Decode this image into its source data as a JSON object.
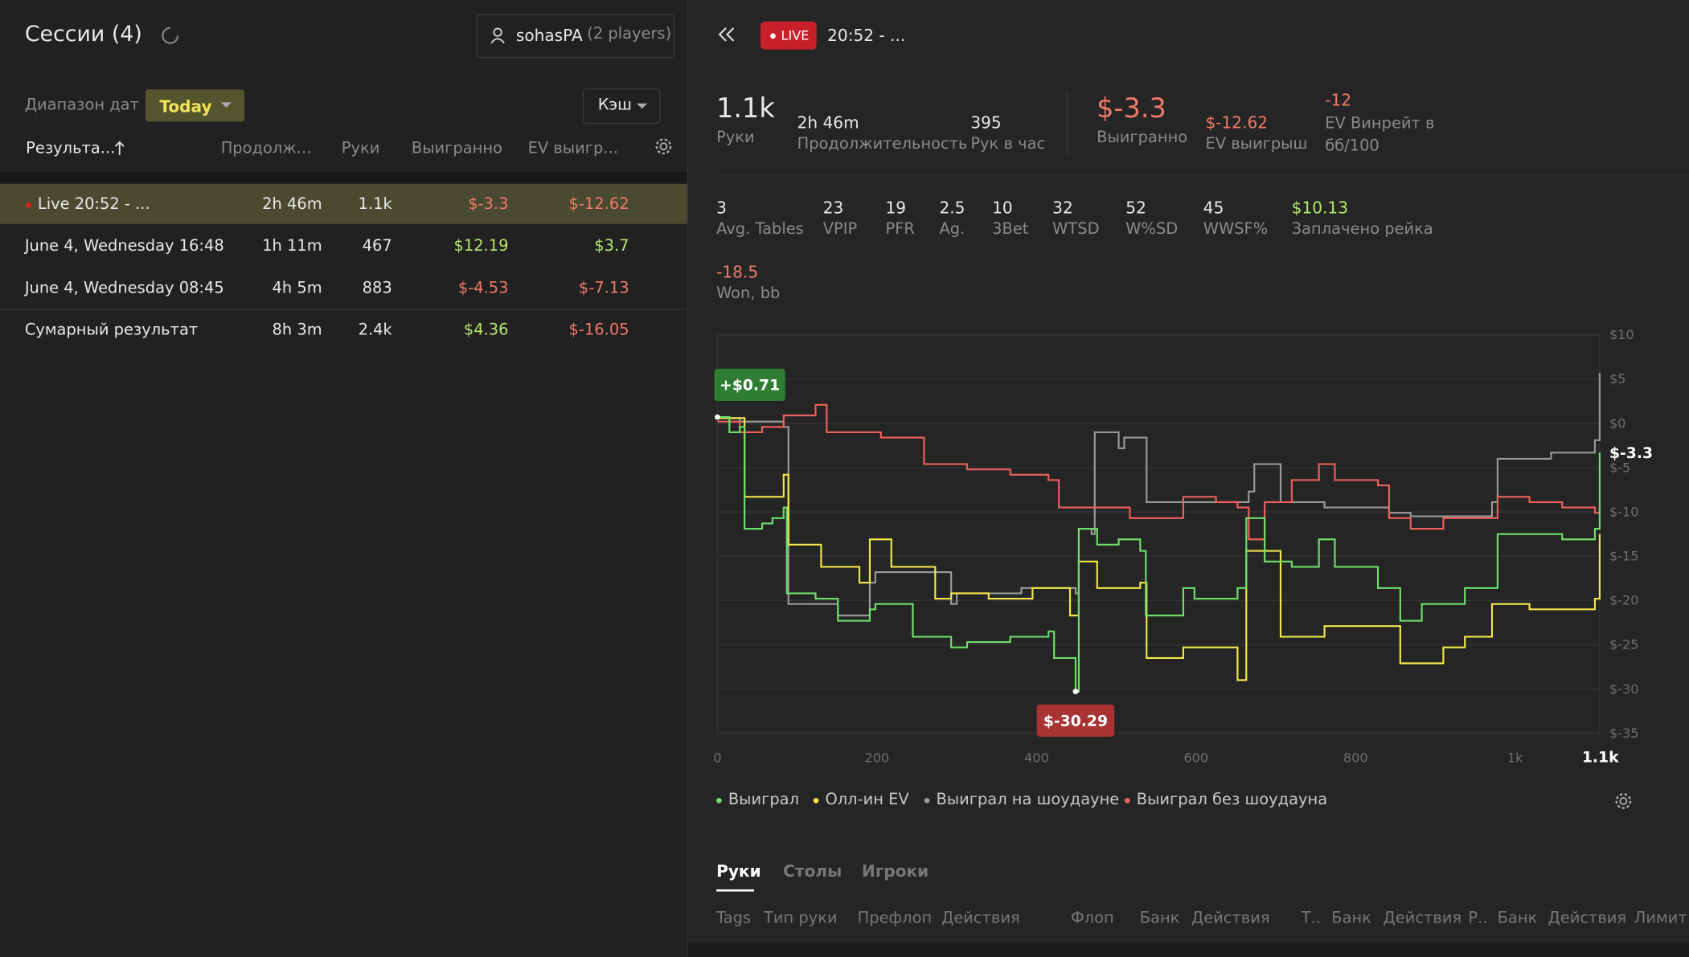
{
  "sidebar": {
    "title": "Сессии (4)",
    "user": "sohasPA",
    "players": "(2 players)",
    "date_label": "Диапазон дат",
    "date_value": "Today",
    "mode": "Кэш",
    "columns": [
      "Результа...",
      "Продолж...",
      "Руки",
      "Выигранно",
      "EV выигр..."
    ],
    "rows": [
      [
        "Live 20:52 - ...",
        "2h 46m",
        "1.1k",
        "$-3.3",
        "$-12.62"
      ],
      [
        "June 4, Wednesday 16:48",
        "1h 11m",
        "467",
        "$12.19",
        "$3.7"
      ],
      [
        "June 4, Wednesday 08:45",
        "4h 5m",
        "883",
        "$-4.53",
        "$-7.13"
      ],
      [
        "Сумарный результат",
        "8h 3m",
        "2.4k",
        "$4.36",
        "$-16.05"
      ]
    ]
  },
  "session": {
    "badge": "LIVE",
    "title": "20:52 - ...",
    "stats": [
      {
        "value": "1.1k",
        "label": "Руки"
      },
      {
        "value": "2h 46m",
        "label": "Продолжительность"
      },
      {
        "value": "395",
        "label": "Рук в час"
      },
      {
        "value": "$-3.3",
        "label": "Выигранно"
      },
      {
        "value": "$-12.62",
        "label": "EV выигрыш"
      },
      {
        "value": "-12",
        "label": "EV Винрейт в бб/100"
      }
    ],
    "stats2": [
      {
        "value": "3",
        "label": "Avg. Tables"
      },
      {
        "value": "23",
        "label": "VPIP"
      },
      {
        "value": "19",
        "label": "PFR"
      },
      {
        "value": "2.5",
        "label": "Ag."
      },
      {
        "value": "10",
        "label": "3Bet"
      },
      {
        "value": "32",
        "label": "WTSD"
      },
      {
        "value": "52",
        "label": "W%SD"
      },
      {
        "value": "45",
        "label": "WWSF%"
      },
      {
        "value": "$10.13",
        "label": "Заплачено рейка"
      },
      {
        "value": "-18.5",
        "label": "Won, bb"
      }
    ]
  },
  "chart_data": {
    "type": "line",
    "xlim": [
      0,
      1106
    ],
    "ylim": [
      -35,
      10
    ],
    "xticks": [
      0,
      200,
      400,
      600,
      800,
      {
        "value": 1000,
        "label": "1k"
      },
      {
        "value": 1100,
        "label": "1.1k"
      }
    ],
    "yticks": [
      {
        "value": 10,
        "label": "$10"
      },
      {
        "value": 5,
        "label": "$5"
      },
      {
        "value": 0,
        "label": "$0"
      },
      {
        "value": -5,
        "label": "$-5"
      },
      {
        "value": -10,
        "label": "$-10"
      },
      {
        "value": -15,
        "label": "$-15"
      },
      {
        "value": -20,
        "label": "$-20"
      },
      {
        "value": -25,
        "label": "$-25"
      },
      {
        "value": -30,
        "label": "$-30"
      },
      {
        "value": -35,
        "label": "$-35"
      }
    ],
    "grid": true,
    "annotations": [
      "+$0.71",
      "$-30.29",
      "$-3.3"
    ],
    "series": [
      {
        "name": "Выиграл",
        "color": "#6ee06a",
        "x": [
          0,
          15,
          28,
          34,
          56,
          69,
          83,
          87,
          123,
          151,
          191,
          198,
          245,
          293,
          313,
          367,
          415,
          422,
          449,
          453,
          476,
          503,
          530,
          537,
          584,
          598,
          652,
          663,
          686,
          720,
          754,
          774,
          828,
          856,
          883,
          937,
          978,
          1018,
          1059,
          1100,
          1106
        ],
        "values": [
          0.71,
          -1.0,
          -0.4,
          -11.9,
          -11.3,
          -10.7,
          -9.5,
          -19.2,
          -19.8,
          -22.3,
          -21.0,
          -20.4,
          -24.1,
          -25.3,
          -24.7,
          -24.1,
          -23.5,
          -26.5,
          -30.29,
          -11.9,
          -13.7,
          -13.1,
          -14.4,
          -21.7,
          -18.6,
          -19.8,
          -18.6,
          -10.7,
          -15.6,
          -16.2,
          -13.1,
          -16.2,
          -18.6,
          -22.3,
          -20.4,
          -18.6,
          -12.5,
          -12.5,
          -13.1,
          -11.9,
          -3.3
        ]
      },
      {
        "name": "Олл-ин EV",
        "color": "#f2e84a",
        "x": [
          0,
          34,
          83,
          89,
          130,
          178,
          191,
          218,
          273,
          293,
          340,
          395,
          442,
          453,
          476,
          530,
          538,
          584,
          612,
          652,
          663,
          706,
          761,
          815,
          856,
          910,
          937,
          971,
          1018,
          1059,
          1100,
          1106
        ],
        "values": [
          0.6,
          -8.3,
          -5.8,
          -13.7,
          -16.2,
          -18.0,
          -13.1,
          -16.2,
          -19.8,
          -19.2,
          -19.8,
          -18.6,
          -21.7,
          -15.6,
          -18.6,
          -18.0,
          -26.5,
          -25.3,
          -25.3,
          -29.0,
          -14.4,
          -24.1,
          -22.9,
          -22.9,
          -27.1,
          -25.3,
          -24.1,
          -20.4,
          -21.0,
          -21.0,
          -19.8,
          -12.5
        ]
      },
      {
        "name": "Выиграл на шоудауне",
        "color": "#9a9a9a",
        "x": [
          0,
          28,
          83,
          89,
          151,
          191,
          198,
          293,
          300,
          381,
          449,
          453,
          469,
          473,
          503,
          510,
          530,
          538,
          612,
          666,
          673,
          706,
          761,
          842,
          869,
          971,
          978,
          1045,
          1100,
          1106
        ],
        "values": [
          0.6,
          0.2,
          -0.4,
          -20.4,
          -21.7,
          -18.0,
          -16.8,
          -20.4,
          -19.2,
          -18.6,
          -19.2,
          -11.9,
          -12.5,
          -1.0,
          -2.8,
          -1.6,
          -1.6,
          -8.9,
          -8.9,
          -7.7,
          -4.6,
          -8.9,
          -9.5,
          -10.1,
          -10.5,
          -8.9,
          -4.0,
          -3.3,
          -1.9,
          5.7
        ]
      },
      {
        "name": "Выиграл без шоудауна",
        "color": "#f0605a",
        "x": [
          0,
          28,
          56,
          83,
          123,
          137,
          205,
          259,
          313,
          367,
          415,
          428,
          462,
          517,
          584,
          625,
          652,
          666,
          686,
          720,
          754,
          774,
          828,
          842,
          869,
          910,
          978,
          1018,
          1059,
          1100,
          1106
        ],
        "values": [
          0.2,
          -1.0,
          -0.4,
          0.9,
          2.1,
          -1.0,
          -1.6,
          -4.6,
          -5.2,
          -5.8,
          -6.4,
          -9.5,
          -9.5,
          -10.7,
          -8.3,
          -8.9,
          -9.5,
          -13.1,
          -8.9,
          -6.4,
          -4.6,
          -6.4,
          -7.0,
          -10.7,
          -11.9,
          -10.7,
          -8.3,
          -8.9,
          -9.5,
          -10.1,
          -9.5
        ]
      }
    ]
  },
  "tabs": [
    "Руки",
    "Столы",
    "Игроки"
  ],
  "hand_columns": [
    "Tags",
    "Тип руки",
    "Префлоп",
    "Действия",
    "Флоп",
    "Банк",
    "Действия",
    "Т..",
    "Банк",
    "Действия",
    "Р..",
    "Банк",
    "Действия",
    "Лимит"
  ]
}
